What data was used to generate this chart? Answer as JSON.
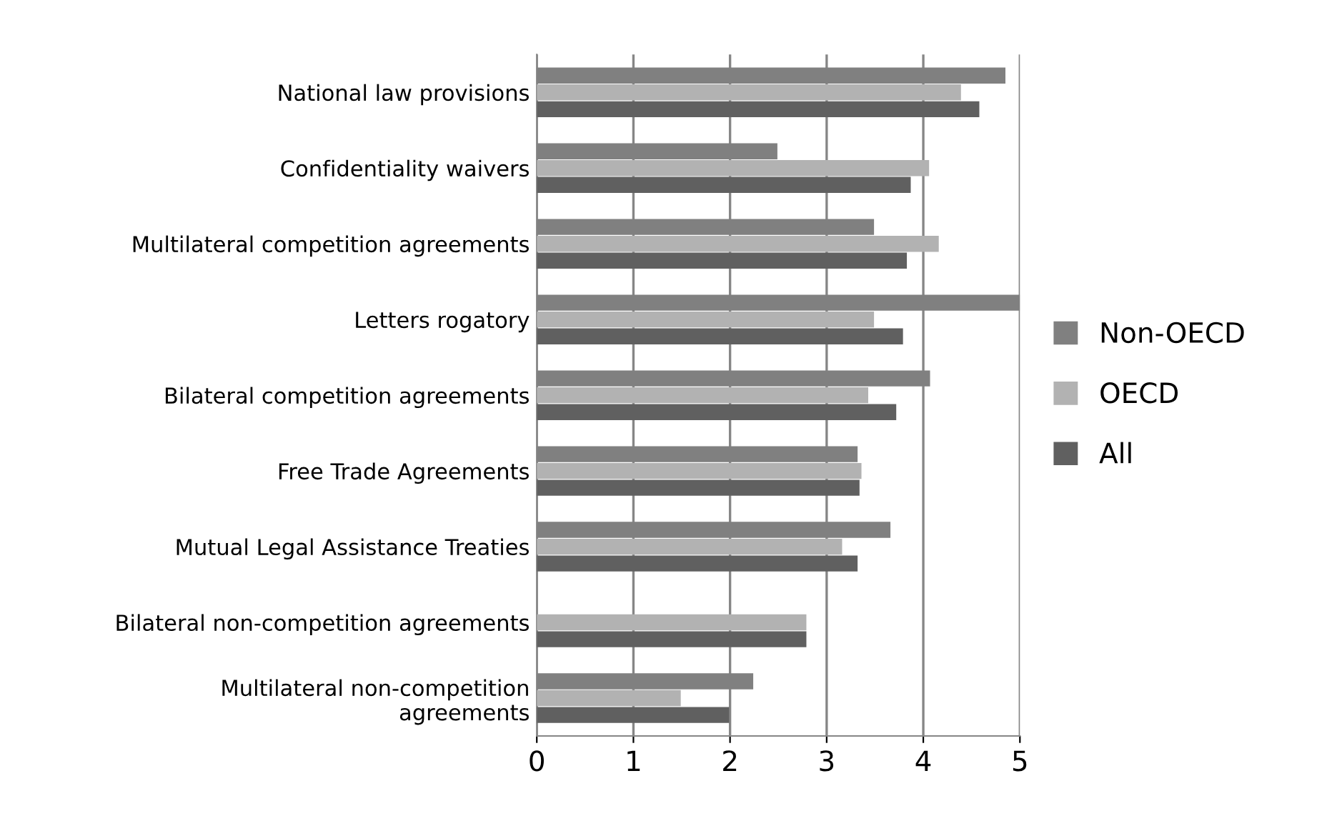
{
  "chart_data": {
    "type": "bar",
    "orientation": "horizontal",
    "categories": [
      "National law provisions",
      "Confidentiality waivers",
      "Multilateral competition agreements",
      "Letters rogatory",
      "Bilateral competition agreements",
      "Free Trade Agreements",
      "Mutual Legal Assistance Treaties",
      "Bilateral non-competition agreements",
      "Multilateral non-competition\nagreements"
    ],
    "series": [
      {
        "name": "Non-OECD",
        "color": "#808080",
        "values": [
          4.85,
          2.49,
          3.49,
          5,
          4.07,
          3.32,
          3.66,
          null,
          2.24
        ]
      },
      {
        "name": "OECD",
        "color": "#b2b2b2",
        "values": [
          4.39,
          4.06,
          4.16,
          3.49,
          3.43,
          3.36,
          3.16,
          2.79,
          1.49
        ]
      },
      {
        "name": "All",
        "color": "#606060",
        "values": [
          4.58,
          3.87,
          3.83,
          3.79,
          3.72,
          3.34,
          3.32,
          2.79,
          1.99
        ]
      }
    ],
    "xlim": [
      0,
      5
    ],
    "xticks": [
      0,
      1,
      2,
      3,
      4,
      5
    ],
    "grid": "x",
    "legend": "right"
  }
}
